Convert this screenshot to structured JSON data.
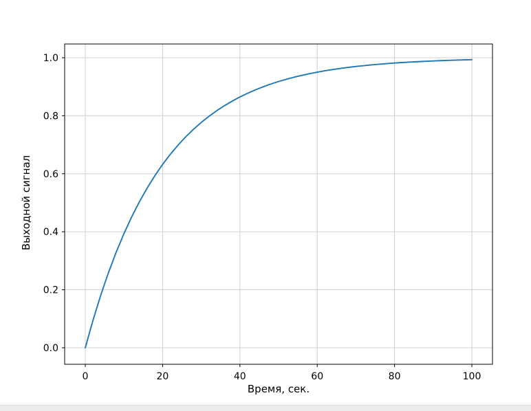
{
  "chart_data": {
    "type": "line",
    "title": "",
    "xlabel": "Время, сек.",
    "ylabel": "Выходной сигнал",
    "xlim": [
      0,
      100
    ],
    "ylim": [
      0.0,
      1.0
    ],
    "xticks": [
      0,
      20,
      40,
      60,
      80,
      100
    ],
    "xticklabels": [
      "0",
      "20",
      "40",
      "60",
      "80",
      "100"
    ],
    "yticks": [
      0.0,
      0.2,
      0.4,
      0.6,
      0.8,
      1.0
    ],
    "yticklabels": [
      "0.0",
      "0.2",
      "0.4",
      "0.6",
      "0.8",
      "1.0"
    ],
    "grid": true,
    "legend": false,
    "line_color": "#1f77b4",
    "grid_color": "#d0d0d0",
    "axis_color": "#000000",
    "text_color": "#000000",
    "background": "#ffffff",
    "series": [
      {
        "name": "Выходной сигнал",
        "x": [
          0,
          2,
          4,
          6,
          8,
          10,
          12,
          14,
          16,
          18,
          20,
          22,
          24,
          26,
          28,
          30,
          32,
          34,
          36,
          38,
          40,
          42,
          44,
          46,
          48,
          50,
          52,
          54,
          56,
          58,
          60,
          62,
          64,
          66,
          68,
          70,
          72,
          74,
          76,
          78,
          80,
          82,
          84,
          86,
          88,
          90,
          92,
          94,
          96,
          98,
          100
        ],
        "y": [
          0.0,
          0.0952,
          0.1813,
          0.2592,
          0.3297,
          0.3935,
          0.4512,
          0.5034,
          0.5507,
          0.5934,
          0.6321,
          0.6671,
          0.6988,
          0.7275,
          0.7534,
          0.7769,
          0.7981,
          0.8173,
          0.8347,
          0.8504,
          0.8647,
          0.8775,
          0.8892,
          0.8997,
          0.9093,
          0.9179,
          0.9257,
          0.9328,
          0.9392,
          0.945,
          0.9502,
          0.955,
          0.9592,
          0.9631,
          0.9666,
          0.9698,
          0.9727,
          0.9753,
          0.9776,
          0.9798,
          0.9817,
          0.9834,
          0.985,
          0.9864,
          0.9877,
          0.9889,
          0.9899,
          0.9909,
          0.9918,
          0.9926,
          0.9933
        ]
      }
    ]
  }
}
